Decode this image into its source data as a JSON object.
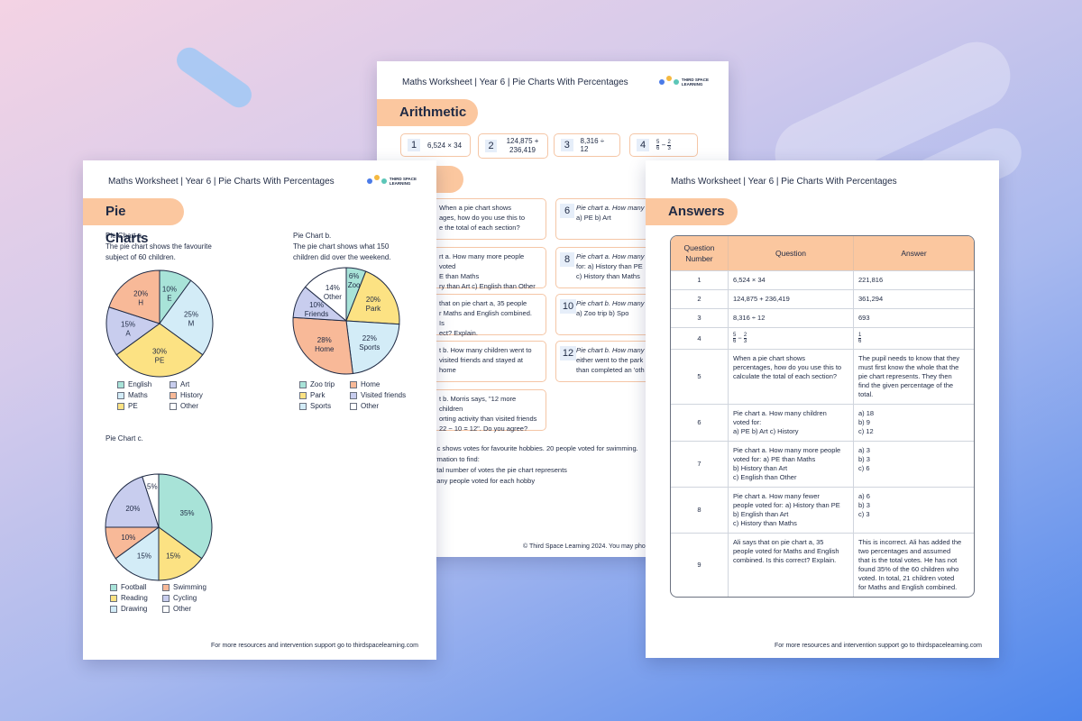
{
  "colors": {
    "orange": "#fbc79f",
    "teal": "#a8e3d8",
    "light_blue": "#d3ecf7",
    "yellow": "#fce283",
    "salmon": "#f8b998",
    "lavender": "#c8cdee",
    "white": "#ffffff"
  },
  "worksheet_header": "Maths Worksheet | Year 6 | Pie Charts With Percentages",
  "logo": {
    "line1": "THIRD SPACE",
    "line2": "LEARNING"
  },
  "footer": "For more resources and intervention support go to thirdspacelearning.com",
  "middle_page": {
    "arithmetic_title": "Arithmetic",
    "arithmetic": [
      {
        "n": "1",
        "q": "6,524 × 34"
      },
      {
        "n": "2",
        "q": "124,875 + 236,419"
      },
      {
        "n": "3",
        "q": "8,316 ÷ 12"
      },
      {
        "n": "4",
        "q": "5/6 − 2/3"
      }
    ],
    "section_title_fragment": "e",
    "questions_left": [
      "When a pie chart shows",
      "ages, how do you use this to",
      "e the total of each section?",
      "rt a. How many more people voted",
      "E than Maths",
      "ry than Art     c) English than Other",
      "that on pie chart a, 35 people",
      "r Maths and English combined. Is",
      "ect? Explain.",
      "t b. How many children went to",
      "visited friends and stayed at home",
      "t b. Morris says, \"12 more children",
      "orting activity than visited friends",
      "22 − 10 = 12\". Do you agree?"
    ],
    "questions_right": [
      {
        "n": "6",
        "l1": "Pie chart a. How many",
        "l2": "a) PE            b) Art"
      },
      {
        "n": "8",
        "l1": "Pie chart a. How many",
        "l2": "for: a) History than PE",
        "l3": "c) History than Maths"
      },
      {
        "n": "10",
        "l1": "Pie chart b. How many",
        "l2": "a) Zoo trip          b) Spo"
      },
      {
        "n": "12",
        "l1": "Pie chart b. How many",
        "l2": "either went to the park",
        "l3": "than completed an 'oth"
      }
    ],
    "bottom_text": [
      "rt c shows votes for favourite hobbies. 20 people voted for swimming.",
      "ormation to find:",
      "total number of votes the pie chart represents",
      "many people voted for each hobby"
    ],
    "copyright": "© Third Space Learning 2024. You may pho"
  },
  "left_page": {
    "title": "Pie Charts",
    "chart_a": {
      "label": "Pie Chart a.",
      "desc1": "The pie chart shows the favourite",
      "desc2": "subject of 60 children."
    },
    "chart_b": {
      "label": "Pie Chart b.",
      "desc1": "The pie chart shows what 150",
      "desc2": "children did over the weekend."
    },
    "chart_c": {
      "label": "Pie Chart c."
    }
  },
  "chart_data": [
    {
      "type": "pie",
      "title": "Pie Chart a.",
      "slices": [
        {
          "name": "English",
          "value": 10,
          "label": "10%",
          "sub": "E",
          "color": "#a8e3d8"
        },
        {
          "name": "Maths",
          "value": 25,
          "label": "25%",
          "sub": "M",
          "color": "#d3ecf7"
        },
        {
          "name": "PE",
          "value": 30,
          "label": "30%",
          "sub": "PE",
          "color": "#fce283"
        },
        {
          "name": "Art",
          "value": 15,
          "label": "15%",
          "sub": "A",
          "color": "#c8cdee"
        },
        {
          "name": "History",
          "value": 20,
          "label": "20%",
          "sub": "H",
          "color": "#f8b998"
        }
      ],
      "legend": [
        "English",
        "Art",
        "Maths",
        "History",
        "PE",
        "Other"
      ]
    },
    {
      "type": "pie",
      "title": "Pie Chart b.",
      "slices": [
        {
          "name": "Zoo trip",
          "value": 6,
          "label": "6%",
          "sub": "Zoo",
          "color": "#a8e3d8"
        },
        {
          "name": "Park",
          "value": 20,
          "label": "20%",
          "sub": "Park",
          "color": "#fce283"
        },
        {
          "name": "Sports",
          "value": 22,
          "label": "22%",
          "sub": "Sports",
          "color": "#d3ecf7"
        },
        {
          "name": "Home",
          "value": 28,
          "label": "28%",
          "sub": "Home",
          "color": "#f8b998"
        },
        {
          "name": "Visited friends",
          "value": 10,
          "label": "10%",
          "sub": "Friends",
          "color": "#c8cdee"
        },
        {
          "name": "Other",
          "value": 14,
          "label": "14%",
          "sub": "Other",
          "color": "#ffffff"
        }
      ],
      "legend": [
        "Zoo trip",
        "Home",
        "Park",
        "Visited friends",
        "Sports",
        "Other"
      ]
    },
    {
      "type": "pie",
      "title": "Pie Chart c.",
      "slices": [
        {
          "name": "Football",
          "value": 35,
          "label": "35%",
          "sub": "",
          "color": "#a8e3d8"
        },
        {
          "name": "Reading",
          "value": 15,
          "label": "15%",
          "sub": "",
          "color": "#fce283"
        },
        {
          "name": "Drawing",
          "value": 15,
          "label": "15%",
          "sub": "",
          "color": "#d3ecf7"
        },
        {
          "name": "Swimming",
          "value": 10,
          "label": "10%",
          "sub": "",
          "color": "#f8b998"
        },
        {
          "name": "Cycling",
          "value": 20,
          "label": "20%",
          "sub": "",
          "color": "#c8cdee"
        },
        {
          "name": "Other",
          "value": 5,
          "label": "5%",
          "sub": "",
          "color": "#ffffff"
        }
      ],
      "legend": [
        "Football",
        "Swimming",
        "Reading",
        "Cycling",
        "Drawing",
        "Other"
      ]
    }
  ],
  "right_page": {
    "title": "Answers",
    "headers": [
      "Question Number",
      "Question",
      "Answer"
    ],
    "rows": [
      {
        "num": "1",
        "q": [
          "6,524 × 34"
        ],
        "a": [
          "221,816"
        ]
      },
      {
        "num": "2",
        "q": [
          "124,875 + 236,419"
        ],
        "a": [
          "361,294"
        ]
      },
      {
        "num": "3",
        "q": [
          "8,316 ÷ 12"
        ],
        "a": [
          "693"
        ]
      },
      {
        "num": "4",
        "q": [
          "5/6 − 2/3"
        ],
        "a": [
          "1/6"
        ]
      },
      {
        "num": "5",
        "q": [
          "When a pie chart shows",
          "percentages, how do you use this to",
          "calculate the total of each section?"
        ],
        "a": [
          "The pupil needs to know that they",
          "must first know the whole that the",
          "pie chart represents. They then",
          "find the given percentage of the",
          "total."
        ]
      },
      {
        "num": "6",
        "q": [
          "Pie chart a. How many children",
          "voted for:",
          "a) PE            b) Art          c) History"
        ],
        "a": [
          "a) 18",
          "b) 9",
          "c) 12"
        ]
      },
      {
        "num": "7",
        "q": [
          "Pie chart a. How many more people",
          "voted for: a) PE than Maths",
          "b) History than Art",
          "c) English than Other"
        ],
        "a": [
          "a) 3",
          "b) 3",
          "c) 6"
        ]
      },
      {
        "num": "8",
        "q": [
          "Pie chart a. How many fewer",
          "people voted for: a) History than PE",
          "b) English than Art",
          "c) History than Maths"
        ],
        "a": [
          "a) 6",
          "b) 3",
          "c) 3"
        ]
      },
      {
        "num": "9",
        "q": [
          "Ali says that on pie chart a, 35",
          "people voted for Maths and English",
          "combined. Is this correct? Explain."
        ],
        "a": [
          "This is incorrect. Ali has added the",
          "two percentages and assumed",
          "that is the total votes. He has not",
          "found 35% of the 60 children who",
          "voted. In total, 21 children voted",
          "for Maths and English combined."
        ]
      }
    ]
  }
}
